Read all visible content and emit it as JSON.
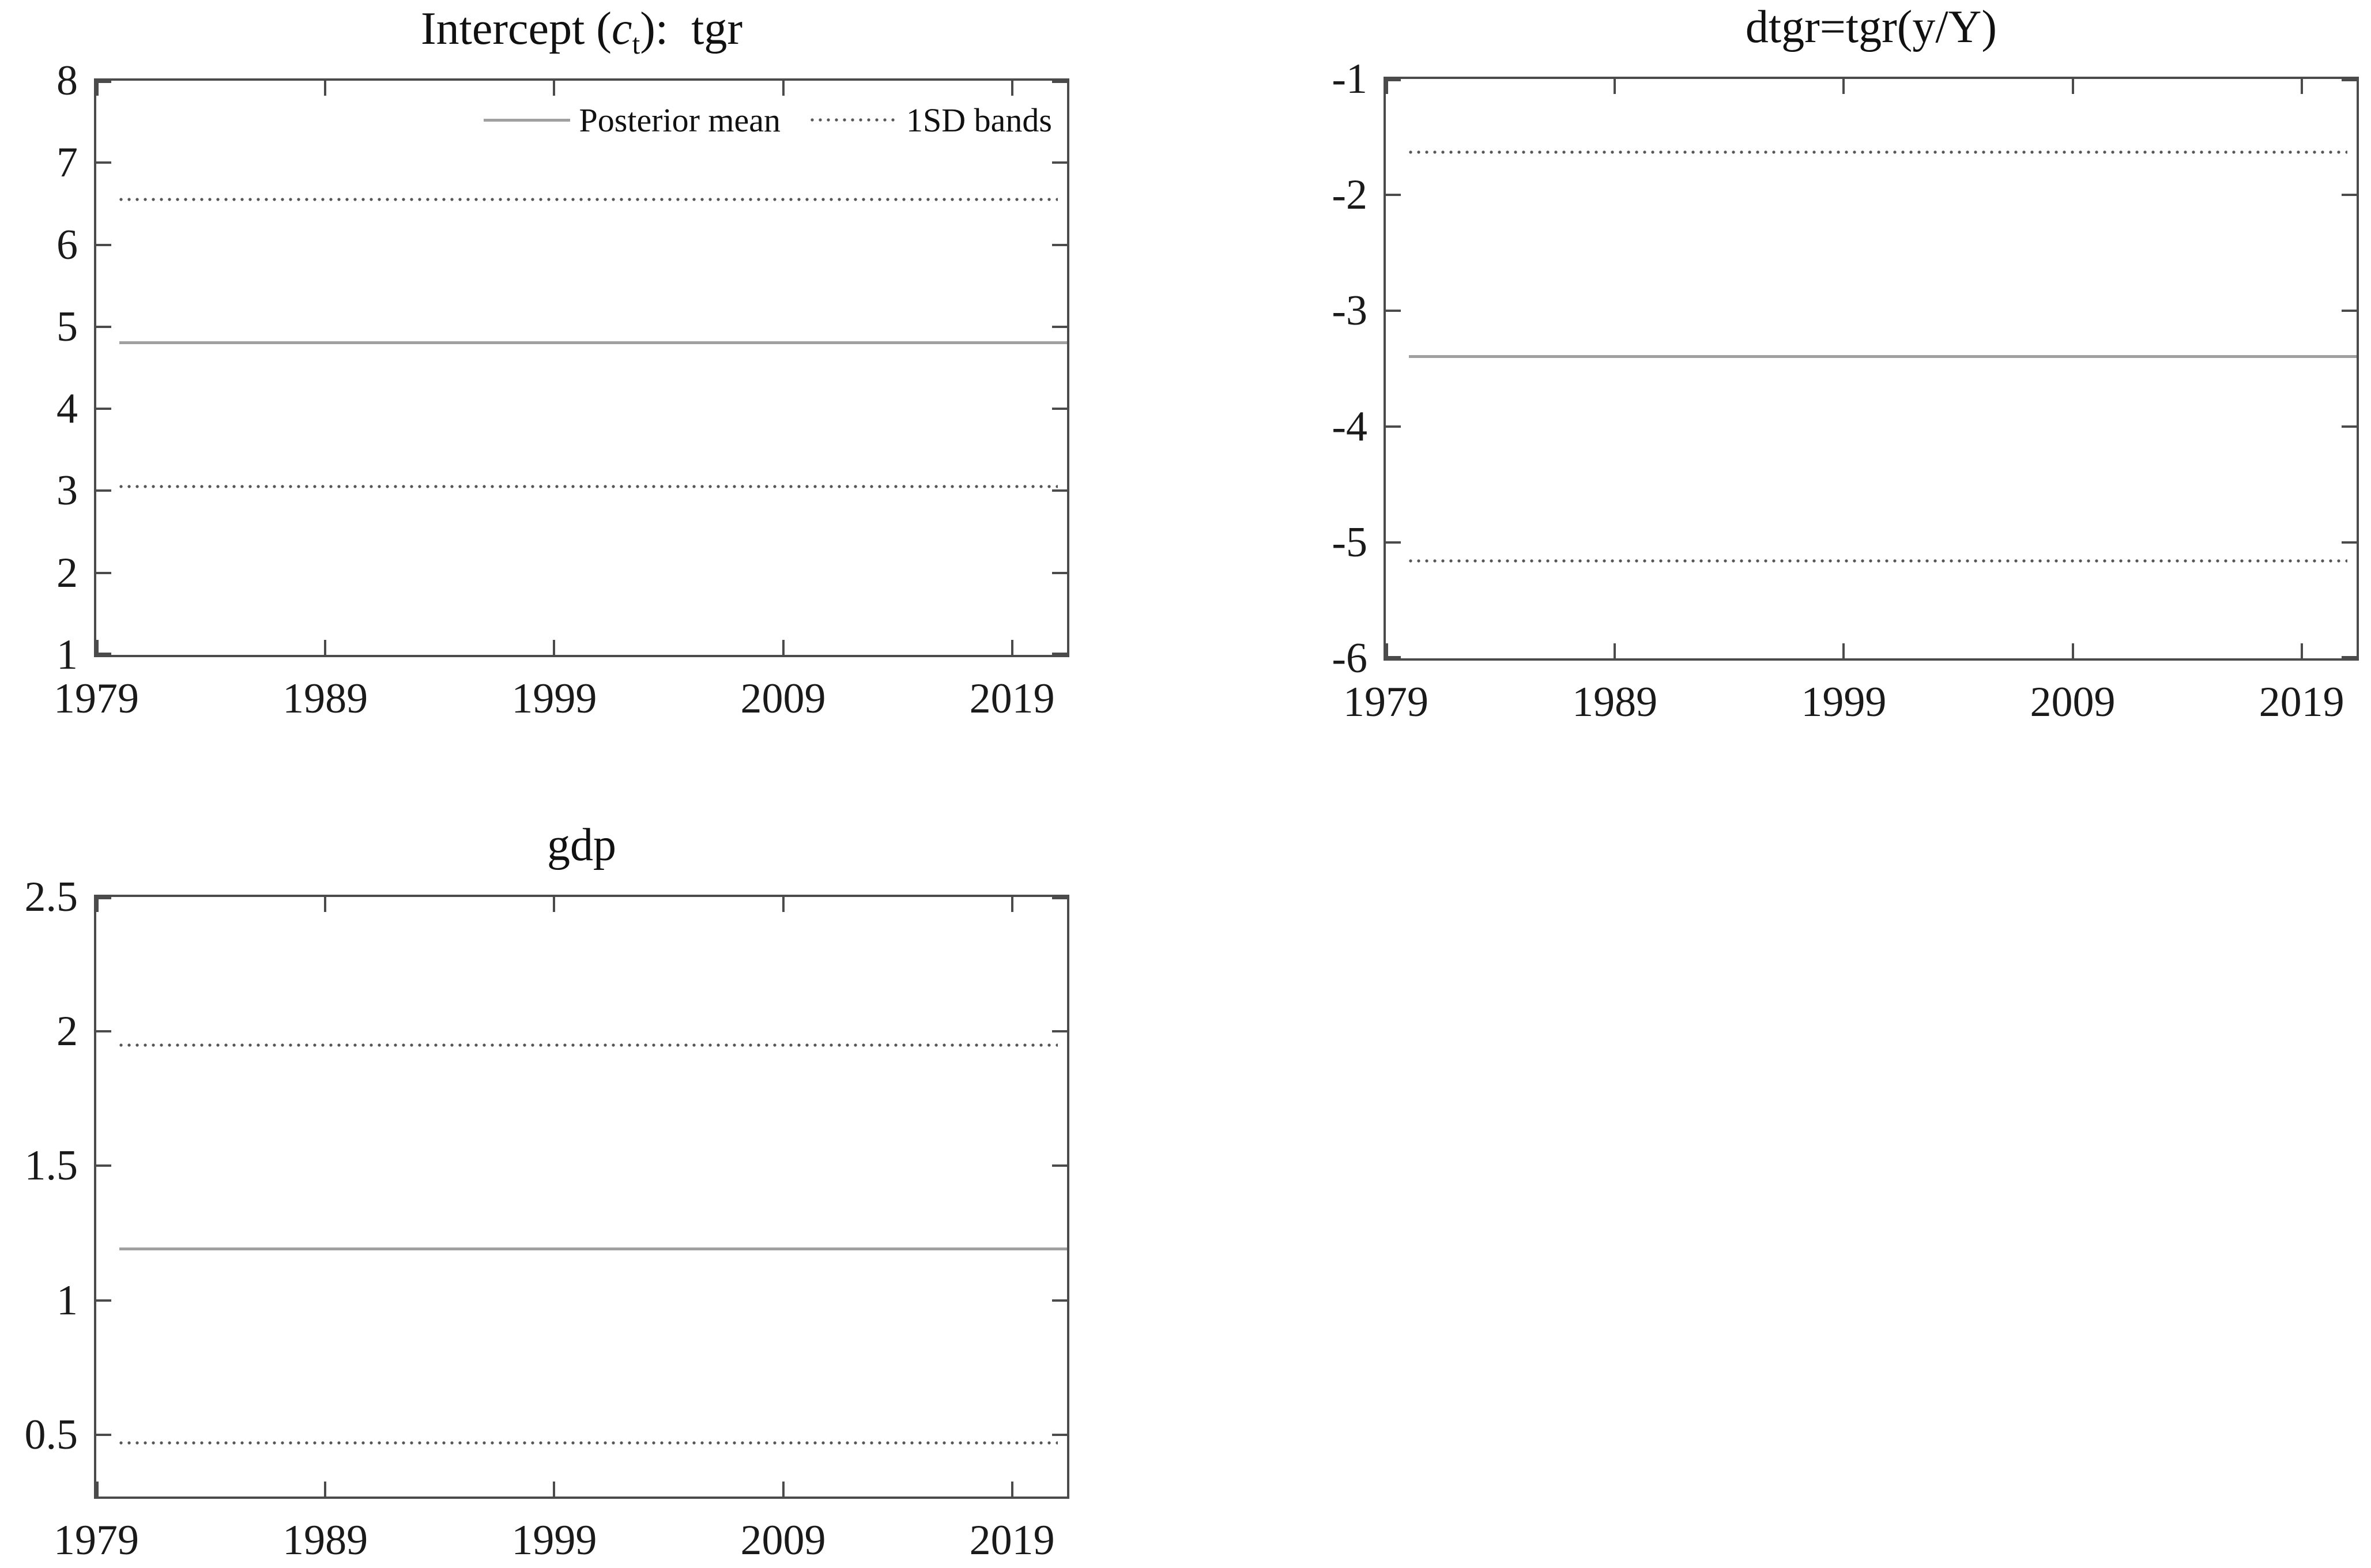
{
  "figure": {
    "background": "#ffffff",
    "colors": {
      "axis": "#4b4b4b",
      "mean_line": "#a0a0a0",
      "band_dots": "#575757",
      "text": "#1a1a1a"
    }
  },
  "chart_data": [
    {
      "type": "line",
      "title": "Intercept (c_t): tgr",
      "title_parts": {
        "pre": "Intercept (",
        "var": "c",
        "sub": "t",
        "post": "):  tgr"
      },
      "legend": {
        "mean_label": "Posterior mean",
        "bands_label": "1SD bands",
        "position": "inside-top-right",
        "box": false
      },
      "x": {
        "ticks": [
          "1979",
          "1989",
          "1999",
          "2009",
          "2019"
        ],
        "range": [
          1979,
          2021.4
        ]
      },
      "y": {
        "ticks": [
          "8",
          "7",
          "6",
          "5",
          "4",
          "3",
          "2",
          "1"
        ],
        "range": [
          1,
          8
        ]
      },
      "series": [
        {
          "name": "Posterior mean",
          "style": "solid",
          "constant_value": 4.8,
          "x_span": [
            1980,
            2021.4
          ]
        },
        {
          "name": "1SD upper band",
          "style": "dotted",
          "constant_value": 6.55,
          "x_span": [
            1980,
            2021
          ]
        },
        {
          "name": "1SD lower band",
          "style": "dotted",
          "constant_value": 3.05,
          "x_span": [
            1980,
            2021
          ]
        }
      ],
      "grid": false
    },
    {
      "type": "line",
      "title": "dtgr=tgr(y/Y)",
      "title_parts": {
        "pre": "dtgr=tgr(y/Y)",
        "var": "",
        "sub": "",
        "post": ""
      },
      "x": {
        "ticks": [
          "1979",
          "1989",
          "1999",
          "2009",
          "2019"
        ],
        "range": [
          1979,
          2021.4
        ]
      },
      "y": {
        "ticks": [
          "-1",
          "-2",
          "-3",
          "-4",
          "-5",
          "-6"
        ],
        "range": [
          -6,
          -1
        ]
      },
      "series": [
        {
          "name": "Posterior mean",
          "style": "solid",
          "constant_value": -3.4,
          "x_span": [
            1980,
            2021.4
          ]
        },
        {
          "name": "1SD upper band",
          "style": "dotted",
          "constant_value": -1.63,
          "x_span": [
            1980,
            2021
          ]
        },
        {
          "name": "1SD lower band",
          "style": "dotted",
          "constant_value": -5.16,
          "x_span": [
            1980,
            2021
          ]
        }
      ],
      "grid": false
    },
    {
      "type": "line",
      "title": "gdp",
      "title_parts": {
        "pre": "gdp",
        "var": "",
        "sub": "",
        "post": ""
      },
      "x": {
        "ticks": [
          "1979",
          "1989",
          "1999",
          "2009",
          "2019"
        ],
        "range": [
          1979,
          2021.4
        ]
      },
      "y": {
        "ticks": [
          "2.5",
          "2",
          "1.5",
          "1",
          "0.5"
        ],
        "range": [
          0.27,
          2.5
        ]
      },
      "series": [
        {
          "name": "Posterior mean",
          "style": "solid",
          "constant_value": 1.19,
          "x_span": [
            1980,
            2021.4
          ]
        },
        {
          "name": "1SD upper band",
          "style": "dotted",
          "constant_value": 1.95,
          "x_span": [
            1980,
            2021
          ]
        },
        {
          "name": "1SD lower band",
          "style": "dotted",
          "constant_value": 0.47,
          "x_span": [
            1980,
            2021
          ]
        }
      ],
      "grid": false
    }
  ]
}
